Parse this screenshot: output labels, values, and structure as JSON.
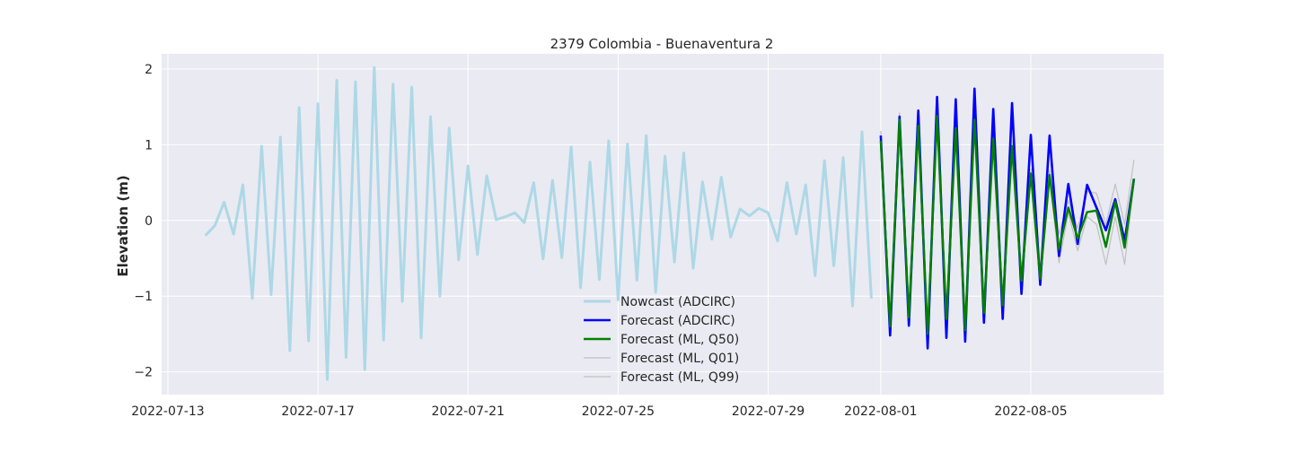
{
  "chart_data": {
    "type": "line",
    "title": "2379 Colombia - Buenaventura 2",
    "xlabel": "",
    "ylabel": "Elevation (m)",
    "x_ticks": [
      "2022-07-13",
      "2022-07-17",
      "2022-07-21",
      "2022-07-25",
      "2022-07-29",
      "2022-08-01",
      "2022-08-05"
    ],
    "y_ticks": [
      "−2",
      "−1",
      "0",
      "1",
      "2"
    ],
    "xlim": [
      "2022-07-12T20:00",
      "2022-08-08T13:00"
    ],
    "ylim": [
      -2.3,
      2.2
    ],
    "grid": true,
    "legend_position": "lower-center",
    "colors": {
      "background": "#eaeaf2",
      "grid": "#ffffff",
      "nowcast": "#add8e6",
      "forecast_adcirc": "#0000ff",
      "ml_q50": "#008000",
      "ml_bounds": "#c0c0c0"
    },
    "series": [
      {
        "name": "Nowcast (ADCIRC)",
        "color": "#add8e6",
        "points": [
          [
            "2022-07-14T00:00",
            -0.2
          ],
          [
            "2022-07-14T06:00",
            -0.07
          ],
          [
            "2022-07-14T12:00",
            0.24
          ],
          [
            "2022-07-14T18:00",
            -0.18
          ],
          [
            "2022-07-15T00:00",
            0.47
          ],
          [
            "2022-07-15T06:00",
            -1.03
          ],
          [
            "2022-07-15T12:00",
            0.98
          ],
          [
            "2022-07-15T18:00",
            -0.98
          ],
          [
            "2022-07-16T00:00",
            1.1
          ],
          [
            "2022-07-16T06:00",
            -1.72
          ],
          [
            "2022-07-16T12:00",
            1.49
          ],
          [
            "2022-07-16T18:00",
            -1.59
          ],
          [
            "2022-07-17T00:00",
            1.54
          ],
          [
            "2022-07-17T06:00",
            -2.1
          ],
          [
            "2022-07-17T12:00",
            1.85
          ],
          [
            "2022-07-17T18:00",
            -1.81
          ],
          [
            "2022-07-18T00:00",
            1.83
          ],
          [
            "2022-07-18T06:00",
            -1.97
          ],
          [
            "2022-07-18T12:00",
            2.02
          ],
          [
            "2022-07-18T18:00",
            -1.58
          ],
          [
            "2022-07-19T00:00",
            1.8
          ],
          [
            "2022-07-19T06:00",
            -1.07
          ],
          [
            "2022-07-19T12:00",
            1.76
          ],
          [
            "2022-07-19T18:00",
            -1.55
          ],
          [
            "2022-07-20T00:00",
            1.37
          ],
          [
            "2022-07-20T06:00",
            -1.0
          ],
          [
            "2022-07-20T12:00",
            1.22
          ],
          [
            "2022-07-20T18:00",
            -0.52
          ],
          [
            "2022-07-21T00:00",
            0.72
          ],
          [
            "2022-07-21T06:00",
            -0.45
          ],
          [
            "2022-07-21T12:00",
            0.59
          ],
          [
            "2022-07-21T18:00",
            0.01
          ],
          [
            "2022-07-22T00:00",
            0.05
          ],
          [
            "2022-07-22T06:00",
            0.1
          ],
          [
            "2022-07-22T12:00",
            -0.03
          ],
          [
            "2022-07-22T18:00",
            0.5
          ],
          [
            "2022-07-23T00:00",
            -0.51
          ],
          [
            "2022-07-23T06:00",
            0.53
          ],
          [
            "2022-07-23T12:00",
            -0.49
          ],
          [
            "2022-07-23T18:00",
            0.97
          ],
          [
            "2022-07-24T00:00",
            -0.89
          ],
          [
            "2022-07-24T06:00",
            0.77
          ],
          [
            "2022-07-24T12:00",
            -0.78
          ],
          [
            "2022-07-24T18:00",
            1.05
          ],
          [
            "2022-07-25T00:00",
            -1.05
          ],
          [
            "2022-07-25T06:00",
            1.01
          ],
          [
            "2022-07-25T12:00",
            -0.79
          ],
          [
            "2022-07-25T18:00",
            1.12
          ],
          [
            "2022-07-26T00:00",
            -0.95
          ],
          [
            "2022-07-26T06:00",
            0.85
          ],
          [
            "2022-07-26T12:00",
            -0.55
          ],
          [
            "2022-07-26T18:00",
            0.89
          ],
          [
            "2022-07-27T00:00",
            -0.63
          ],
          [
            "2022-07-27T06:00",
            0.51
          ],
          [
            "2022-07-27T12:00",
            -0.25
          ],
          [
            "2022-07-27T18:00",
            0.57
          ],
          [
            "2022-07-28T00:00",
            -0.22
          ],
          [
            "2022-07-28T06:00",
            0.15
          ],
          [
            "2022-07-28T12:00",
            0.06
          ],
          [
            "2022-07-28T18:00",
            0.16
          ],
          [
            "2022-07-29T00:00",
            0.1
          ],
          [
            "2022-07-29T06:00",
            -0.27
          ],
          [
            "2022-07-29T12:00",
            0.5
          ],
          [
            "2022-07-29T18:00",
            -0.18
          ],
          [
            "2022-07-30T00:00",
            0.47
          ],
          [
            "2022-07-30T06:00",
            -0.73
          ],
          [
            "2022-07-30T12:00",
            0.79
          ],
          [
            "2022-07-30T18:00",
            -0.6
          ],
          [
            "2022-07-31T00:00",
            0.83
          ],
          [
            "2022-07-31T06:00",
            -1.13
          ],
          [
            "2022-07-31T12:00",
            1.17
          ],
          [
            "2022-07-31T18:00",
            -1.03
          ]
        ]
      },
      {
        "name": "Forecast (ADCIRC)",
        "color": "#0000ff",
        "points": [
          [
            "2022-08-01T00:00",
            1.12
          ],
          [
            "2022-08-01T06:00",
            -1.52
          ],
          [
            "2022-08-01T12:00",
            1.37
          ],
          [
            "2022-08-01T18:00",
            -1.39
          ],
          [
            "2022-08-02T00:00",
            1.45
          ],
          [
            "2022-08-02T06:00",
            -1.69
          ],
          [
            "2022-08-02T12:00",
            1.63
          ],
          [
            "2022-08-02T18:00",
            -1.55
          ],
          [
            "2022-08-03T00:00",
            1.6
          ],
          [
            "2022-08-03T06:00",
            -1.6
          ],
          [
            "2022-08-03T12:00",
            1.74
          ],
          [
            "2022-08-03T18:00",
            -1.35
          ],
          [
            "2022-08-04T00:00",
            1.47
          ],
          [
            "2022-08-04T06:00",
            -1.3
          ],
          [
            "2022-08-04T12:00",
            1.55
          ],
          [
            "2022-08-04T18:00",
            -0.97
          ],
          [
            "2022-08-05T00:00",
            1.13
          ],
          [
            "2022-08-05T06:00",
            -0.85
          ],
          [
            "2022-08-05T12:00",
            1.12
          ],
          [
            "2022-08-05T18:00",
            -0.47
          ],
          [
            "2022-08-06T00:00",
            0.48
          ],
          [
            "2022-08-06T06:00",
            -0.31
          ],
          [
            "2022-08-06T12:00",
            0.47
          ],
          [
            "2022-08-06T18:00",
            0.17
          ],
          [
            "2022-08-07T00:00",
            -0.13
          ],
          [
            "2022-08-07T06:00",
            0.28
          ],
          [
            "2022-08-07T12:00",
            -0.27
          ],
          [
            "2022-08-07T18:00",
            0.55
          ]
        ]
      },
      {
        "name": "Forecast (ML, Q50)",
        "color": "#008000",
        "points": [
          [
            "2022-08-01T00:00",
            1.05
          ],
          [
            "2022-08-01T06:00",
            -1.4
          ],
          [
            "2022-08-01T12:00",
            1.33
          ],
          [
            "2022-08-01T18:00",
            -1.28
          ],
          [
            "2022-08-02T00:00",
            1.25
          ],
          [
            "2022-08-02T06:00",
            -1.5
          ],
          [
            "2022-08-02T12:00",
            1.38
          ],
          [
            "2022-08-02T18:00",
            -1.3
          ],
          [
            "2022-08-03T00:00",
            1.22
          ],
          [
            "2022-08-03T06:00",
            -1.45
          ],
          [
            "2022-08-03T12:00",
            1.33
          ],
          [
            "2022-08-03T18:00",
            -1.22
          ],
          [
            "2022-08-04T00:00",
            1.08
          ],
          [
            "2022-08-04T06:00",
            -1.12
          ],
          [
            "2022-08-04T12:00",
            0.98
          ],
          [
            "2022-08-04T18:00",
            -0.8
          ],
          [
            "2022-08-05T00:00",
            0.62
          ],
          [
            "2022-08-05T06:00",
            -0.77
          ],
          [
            "2022-08-05T12:00",
            0.6
          ],
          [
            "2022-08-05T18:00",
            -0.38
          ],
          [
            "2022-08-06T00:00",
            0.17
          ],
          [
            "2022-08-06T06:00",
            -0.24
          ],
          [
            "2022-08-06T12:00",
            0.11
          ],
          [
            "2022-08-06T18:00",
            0.13
          ],
          [
            "2022-08-07T00:00",
            -0.35
          ],
          [
            "2022-08-07T06:00",
            0.25
          ],
          [
            "2022-08-07T12:00",
            -0.36
          ],
          [
            "2022-08-07T18:00",
            0.55
          ]
        ]
      },
      {
        "name": "Forecast (ML, Q01)",
        "color": "#c0c0c0",
        "points": [
          [
            "2022-08-01T00:00",
            1.02
          ],
          [
            "2022-08-01T06:00",
            -1.45
          ],
          [
            "2022-08-01T12:00",
            1.3
          ],
          [
            "2022-08-01T18:00",
            -1.32
          ],
          [
            "2022-08-02T00:00",
            1.2
          ],
          [
            "2022-08-02T06:00",
            -1.55
          ],
          [
            "2022-08-02T12:00",
            1.33
          ],
          [
            "2022-08-02T18:00",
            -1.35
          ],
          [
            "2022-08-03T00:00",
            1.17
          ],
          [
            "2022-08-03T06:00",
            -1.5
          ],
          [
            "2022-08-03T12:00",
            1.28
          ],
          [
            "2022-08-03T18:00",
            -1.28
          ],
          [
            "2022-08-04T00:00",
            1.03
          ],
          [
            "2022-08-04T06:00",
            -1.18
          ],
          [
            "2022-08-04T12:00",
            0.93
          ],
          [
            "2022-08-04T18:00",
            -0.86
          ],
          [
            "2022-08-05T00:00",
            0.57
          ],
          [
            "2022-08-05T06:00",
            -0.82
          ],
          [
            "2022-08-05T12:00",
            0.55
          ],
          [
            "2022-08-05T18:00",
            -0.56
          ],
          [
            "2022-08-06T00:00",
            0.1
          ],
          [
            "2022-08-06T06:00",
            -0.4
          ],
          [
            "2022-08-06T12:00",
            0.05
          ],
          [
            "2022-08-06T18:00",
            -0.05
          ],
          [
            "2022-08-07T00:00",
            -0.58
          ],
          [
            "2022-08-07T06:00",
            0.05
          ],
          [
            "2022-08-07T12:00",
            -0.58
          ],
          [
            "2022-08-07T18:00",
            0.48
          ]
        ]
      },
      {
        "name": "Forecast (ML, Q99)",
        "color": "#c0c0c0",
        "points": [
          [
            "2022-08-01T00:00",
            1.18
          ],
          [
            "2022-08-01T06:00",
            -1.3
          ],
          [
            "2022-08-01T12:00",
            1.42
          ],
          [
            "2022-08-01T18:00",
            -1.18
          ],
          [
            "2022-08-02T00:00",
            1.32
          ],
          [
            "2022-08-02T06:00",
            -1.42
          ],
          [
            "2022-08-02T12:00",
            1.46
          ],
          [
            "2022-08-02T18:00",
            -1.2
          ],
          [
            "2022-08-03T00:00",
            1.3
          ],
          [
            "2022-08-03T06:00",
            -1.36
          ],
          [
            "2022-08-03T12:00",
            1.42
          ],
          [
            "2022-08-03T18:00",
            -1.1
          ],
          [
            "2022-08-04T00:00",
            1.16
          ],
          [
            "2022-08-04T06:00",
            -1.0
          ],
          [
            "2022-08-04T12:00",
            1.06
          ],
          [
            "2022-08-04T18:00",
            -0.66
          ],
          [
            "2022-08-05T00:00",
            0.68
          ],
          [
            "2022-08-05T06:00",
            -0.6
          ],
          [
            "2022-08-05T12:00",
            0.66
          ],
          [
            "2022-08-05T18:00",
            -0.18
          ],
          [
            "2022-08-06T00:00",
            0.26
          ],
          [
            "2022-08-06T06:00",
            -0.1
          ],
          [
            "2022-08-06T12:00",
            0.38
          ],
          [
            "2022-08-06T18:00",
            0.36
          ],
          [
            "2022-08-07T00:00",
            -0.05
          ],
          [
            "2022-08-07T06:00",
            0.48
          ],
          [
            "2022-08-07T12:00",
            -0.05
          ],
          [
            "2022-08-07T18:00",
            0.8
          ]
        ]
      }
    ]
  }
}
